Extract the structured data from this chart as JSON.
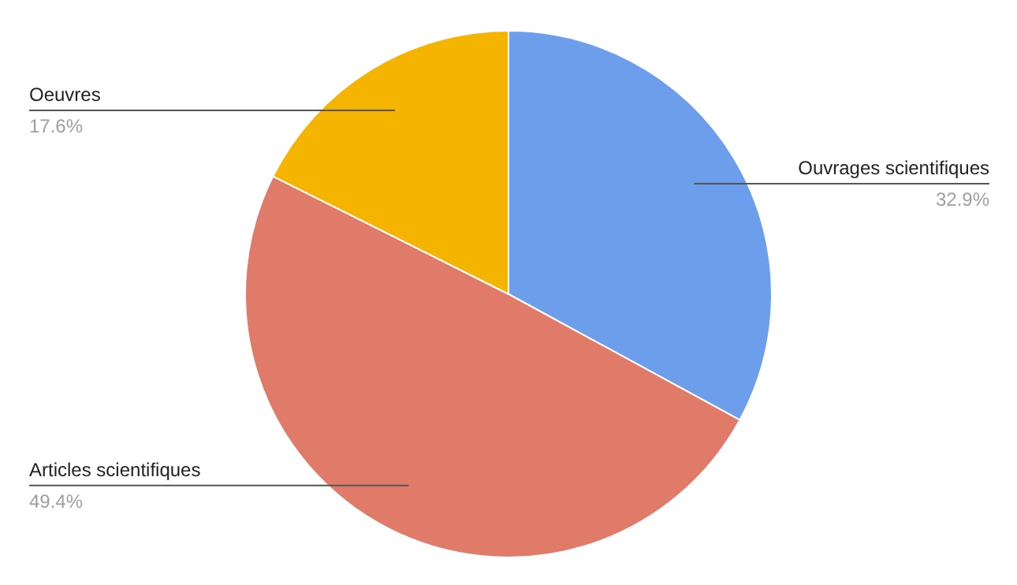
{
  "chart_data": {
    "type": "pie",
    "categories": [
      "Ouvrages scientifiques",
      "Articles scientifiques",
      "Oeuvres"
    ],
    "values": [
      32.9,
      49.4,
      17.6
    ],
    "value_labels": [
      "32.9%",
      "49.4%",
      "17.6%"
    ],
    "colors": [
      "#6d9eeb",
      "#e07b6a",
      "#f4b400"
    ],
    "legend": false
  }
}
